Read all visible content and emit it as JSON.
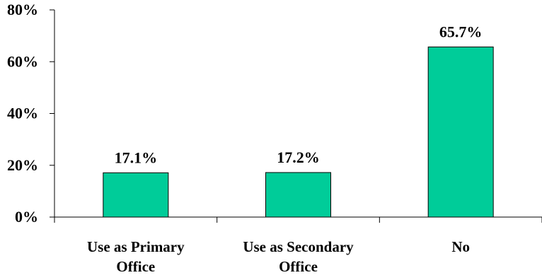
{
  "chart_data": {
    "type": "bar",
    "categories": [
      [
        "Use as Primary",
        "Office"
      ],
      [
        "Use as Secondary",
        "Office"
      ],
      [
        "No"
      ]
    ],
    "values": [
      17.1,
      17.2,
      65.7
    ],
    "data_labels": [
      "17.1%",
      "17.2%",
      "65.7%"
    ],
    "ylim": [
      0,
      80
    ],
    "yticks": [
      0,
      20,
      40,
      60,
      80
    ],
    "ytick_labels": [
      "0%",
      "20%",
      "40%",
      "60%",
      "80%"
    ],
    "title": "",
    "xlabel": "",
    "ylabel": "",
    "grid": false,
    "legend": "none",
    "bar_color": "#00CC99",
    "bar_edge_color": "#000000"
  }
}
